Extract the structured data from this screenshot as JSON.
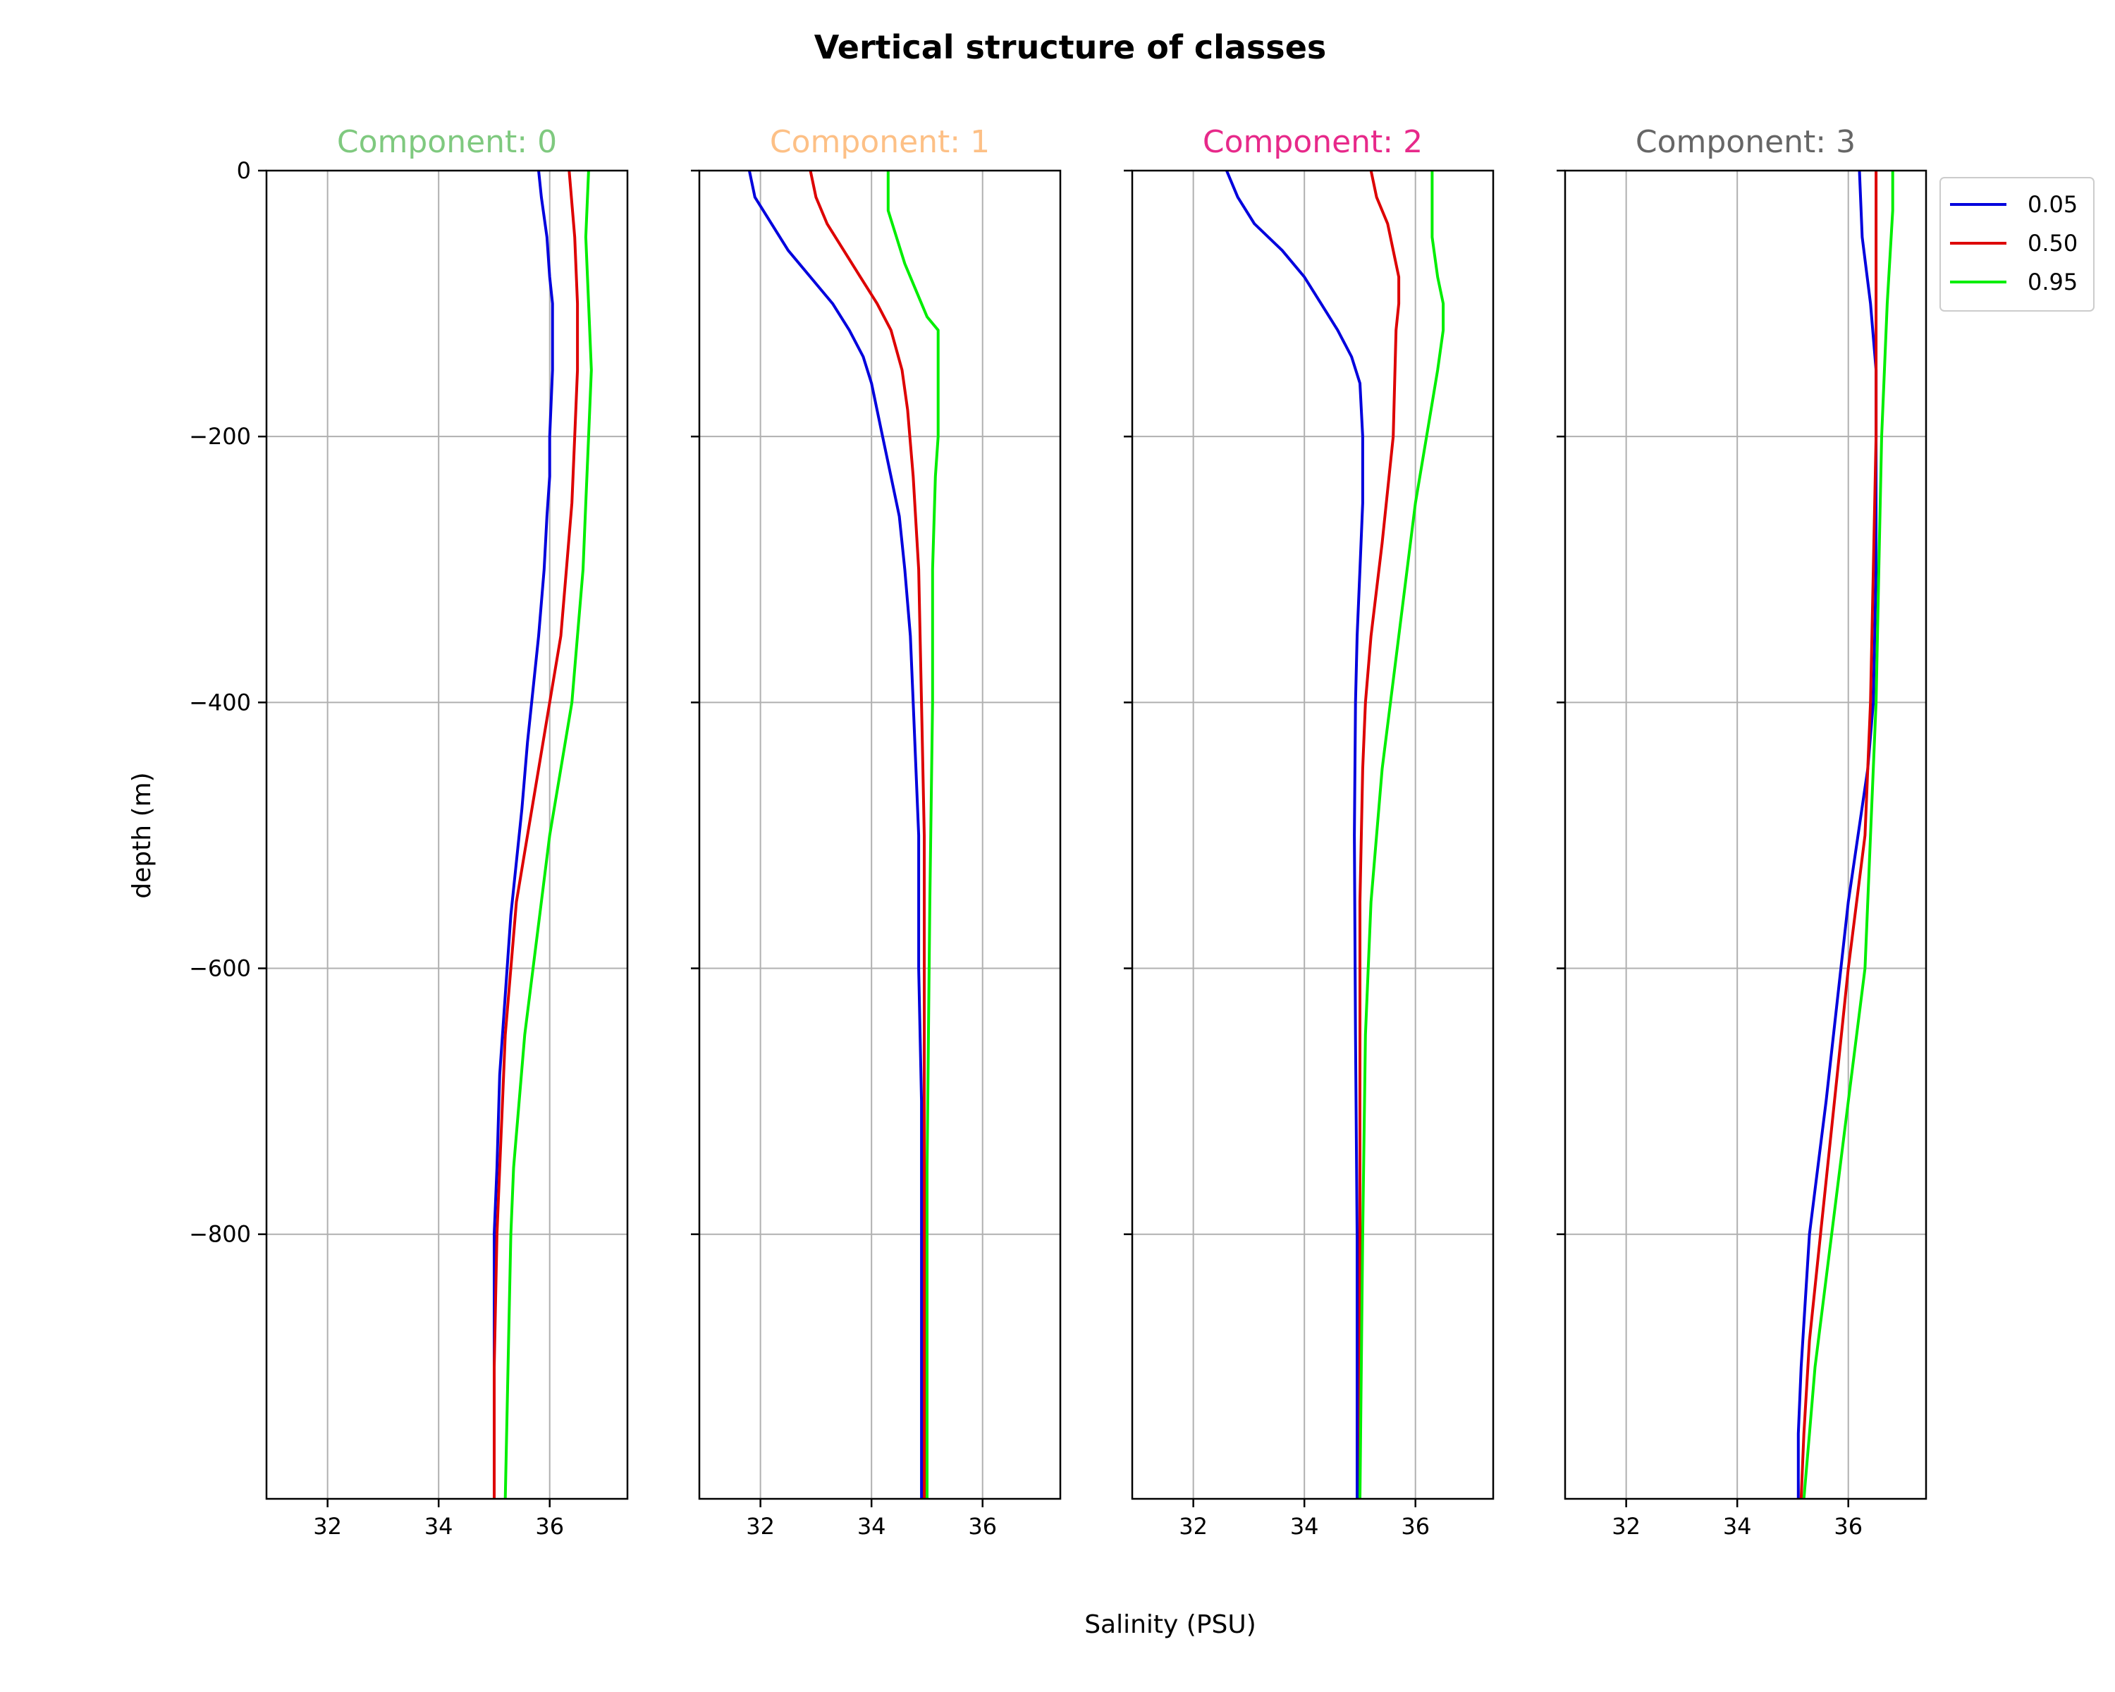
{
  "figure": {
    "title": "Vertical structure of classes",
    "ylabel": "depth (m)",
    "xlabel": "Salinity (PSU)"
  },
  "colors": {
    "q005": "#0000dd",
    "q050": "#dd0000",
    "q095": "#00ee00",
    "grid": "#b0b0b0",
    "comp0": "#7fc97f",
    "comp1": "#fdc086",
    "comp2": "#e7298a",
    "comp3": "#666666"
  },
  "legend": {
    "placement": "upper-right-outside",
    "entries": [
      {
        "label": "0.05",
        "color": "#0000dd"
      },
      {
        "label": "0.50",
        "color": "#dd0000"
      },
      {
        "label": "0.95",
        "color": "#00ee00"
      }
    ]
  },
  "chart_data": [
    {
      "type": "line",
      "title": "Component: 0",
      "title_color": "#7fc97f",
      "xlim": [
        30.9,
        37.4
      ],
      "ylim": [
        -999,
        0
      ],
      "xticks": [
        32,
        34,
        36
      ],
      "yticks": [
        0,
        -200,
        -400,
        -600,
        -800
      ],
      "grid": true,
      "series": [
        {
          "name": "0.05",
          "color": "#0000dd",
          "x": [
            35.8,
            35.85,
            35.95,
            36.0,
            36.05,
            36.05,
            36.0,
            36.0,
            35.95,
            35.9,
            35.8,
            35.7,
            35.6,
            35.5,
            35.3,
            35.2,
            35.1,
            35.05,
            35.0,
            35.0,
            35.0,
            35.0,
            35.0
          ],
          "y": [
            0,
            -20,
            -50,
            -80,
            -100,
            -150,
            -200,
            -230,
            -260,
            -300,
            -350,
            -390,
            -430,
            -480,
            -560,
            -620,
            -680,
            -750,
            -800,
            -850,
            -900,
            -950,
            -999
          ]
        },
        {
          "name": "0.50",
          "color": "#dd0000",
          "x": [
            36.35,
            36.45,
            36.5,
            36.5,
            36.45,
            36.4,
            36.3,
            36.2,
            36.0,
            35.8,
            35.6,
            35.4,
            35.3,
            35.2,
            35.15,
            35.1,
            35.05,
            35.0,
            35.0
          ],
          "y": [
            0,
            -50,
            -100,
            -150,
            -200,
            -250,
            -300,
            -350,
            -400,
            -450,
            -500,
            -550,
            -600,
            -650,
            -700,
            -750,
            -800,
            -900,
            -999
          ]
        },
        {
          "name": "0.95",
          "color": "#00ee00",
          "x": [
            36.7,
            36.65,
            36.7,
            36.75,
            36.7,
            36.65,
            36.6,
            36.5,
            36.4,
            36.2,
            36.0,
            35.85,
            35.7,
            35.55,
            35.45,
            35.35,
            35.3,
            35.25,
            35.2
          ],
          "y": [
            0,
            -50,
            -100,
            -150,
            -200,
            -250,
            -300,
            -350,
            -400,
            -450,
            -500,
            -550,
            -600,
            -650,
            -700,
            -750,
            -800,
            -900,
            -999
          ]
        }
      ]
    },
    {
      "type": "line",
      "title": "Component: 1",
      "title_color": "#fdc086",
      "xlim": [
        30.9,
        37.4
      ],
      "ylim": [
        -999,
        0
      ],
      "xticks": [
        32,
        34,
        36
      ],
      "yticks": [
        0,
        -200,
        -400,
        -600,
        -800
      ],
      "grid": true,
      "series": [
        {
          "name": "0.05",
          "color": "#0000dd",
          "x": [
            31.8,
            31.9,
            32.2,
            32.5,
            32.9,
            33.3,
            33.6,
            33.85,
            34.0,
            34.2,
            34.35,
            34.5,
            34.6,
            34.7,
            34.75,
            34.8,
            34.85,
            34.85,
            34.9,
            34.9,
            34.9
          ],
          "y": [
            0,
            -20,
            -40,
            -60,
            -80,
            -100,
            -120,
            -140,
            -160,
            -200,
            -230,
            -260,
            -300,
            -350,
            -400,
            -450,
            -500,
            -600,
            -700,
            -850,
            -999
          ]
        },
        {
          "name": "0.50",
          "color": "#dd0000",
          "x": [
            32.9,
            33.0,
            33.2,
            33.5,
            33.8,
            34.1,
            34.35,
            34.55,
            34.65,
            34.75,
            34.85,
            34.9,
            34.95,
            34.95,
            34.95,
            34.95
          ],
          "y": [
            0,
            -20,
            -40,
            -60,
            -80,
            -100,
            -120,
            -150,
            -180,
            -230,
            -300,
            -400,
            -500,
            -650,
            -800,
            -999
          ]
        },
        {
          "name": "0.95",
          "color": "#00ee00",
          "x": [
            34.3,
            34.3,
            34.45,
            34.6,
            34.8,
            35.0,
            35.2,
            35.2,
            35.2,
            35.15,
            35.1,
            35.1,
            35.05,
            35.0,
            35.0
          ],
          "y": [
            0,
            -30,
            -50,
            -70,
            -90,
            -110,
            -120,
            -150,
            -200,
            -230,
            -300,
            -400,
            -550,
            -750,
            -999
          ]
        }
      ]
    },
    {
      "type": "line",
      "title": "Component: 2",
      "title_color": "#e7298a",
      "xlim": [
        30.9,
        37.4
      ],
      "ylim": [
        -999,
        0
      ],
      "xticks": [
        32,
        34,
        36
      ],
      "yticks": [
        0,
        -200,
        -400,
        -600,
        -800
      ],
      "grid": true,
      "series": [
        {
          "name": "0.05",
          "color": "#0000dd",
          "x": [
            32.6,
            32.8,
            33.1,
            33.6,
            34.0,
            34.3,
            34.6,
            34.85,
            35.0,
            35.05,
            35.05,
            35.0,
            34.95,
            34.92,
            34.9,
            34.92,
            34.95,
            34.95
          ],
          "y": [
            0,
            -20,
            -40,
            -60,
            -80,
            -100,
            -120,
            -140,
            -160,
            -200,
            -250,
            -300,
            -350,
            -400,
            -500,
            -650,
            -800,
            -999
          ]
        },
        {
          "name": "0.50",
          "color": "#dd0000",
          "x": [
            35.2,
            35.3,
            35.5,
            35.6,
            35.7,
            35.7,
            35.65,
            35.6,
            35.4,
            35.2,
            35.1,
            35.05,
            35.0,
            35.0,
            35.0,
            35.0
          ],
          "y": [
            0,
            -20,
            -40,
            -60,
            -80,
            -100,
            -120,
            -200,
            -280,
            -350,
            -400,
            -450,
            -550,
            -700,
            -850,
            -999
          ]
        },
        {
          "name": "0.95",
          "color": "#00ee00",
          "x": [
            36.3,
            36.3,
            36.4,
            36.5,
            36.5,
            36.4,
            36.2,
            36.0,
            35.7,
            35.4,
            35.2,
            35.1,
            35.05,
            35.0
          ],
          "y": [
            0,
            -50,
            -80,
            -100,
            -120,
            -150,
            -200,
            -250,
            -350,
            -450,
            -550,
            -650,
            -800,
            -999
          ]
        }
      ]
    },
    {
      "type": "line",
      "title": "Component: 3",
      "title_color": "#666666",
      "xlim": [
        30.9,
        37.4
      ],
      "ylim": [
        -999,
        0
      ],
      "xticks": [
        32,
        34,
        36
      ],
      "yticks": [
        0,
        -200,
        -400,
        -600,
        -800
      ],
      "grid": true,
      "series": [
        {
          "name": "0.05",
          "color": "#0000dd",
          "x": [
            36.2,
            36.25,
            36.4,
            36.5,
            36.5,
            36.5,
            36.45,
            36.35,
            36.0,
            35.6,
            35.3,
            35.15,
            35.1,
            35.1
          ],
          "y": [
            0,
            -50,
            -100,
            -150,
            -200,
            -300,
            -400,
            -450,
            -550,
            -700,
            -800,
            -900,
            -950,
            -999
          ]
        },
        {
          "name": "0.50",
          "color": "#dd0000",
          "x": [
            36.5,
            36.5,
            36.5,
            36.5,
            36.45,
            36.4,
            36.3,
            36.0,
            35.8,
            35.5,
            35.3,
            35.2,
            35.15
          ],
          "y": [
            0,
            -50,
            -100,
            -200,
            -300,
            -400,
            -500,
            -600,
            -680,
            -800,
            -880,
            -950,
            -999
          ]
        },
        {
          "name": "0.95",
          "color": "#00ee00",
          "x": [
            36.8,
            36.8,
            36.7,
            36.6,
            36.55,
            36.5,
            36.4,
            36.3,
            36.0,
            35.7,
            35.4,
            35.3,
            35.2
          ],
          "y": [
            0,
            -30,
            -100,
            -200,
            -300,
            -400,
            -500,
            -600,
            -700,
            -800,
            -900,
            -950,
            -999
          ]
        }
      ]
    }
  ]
}
